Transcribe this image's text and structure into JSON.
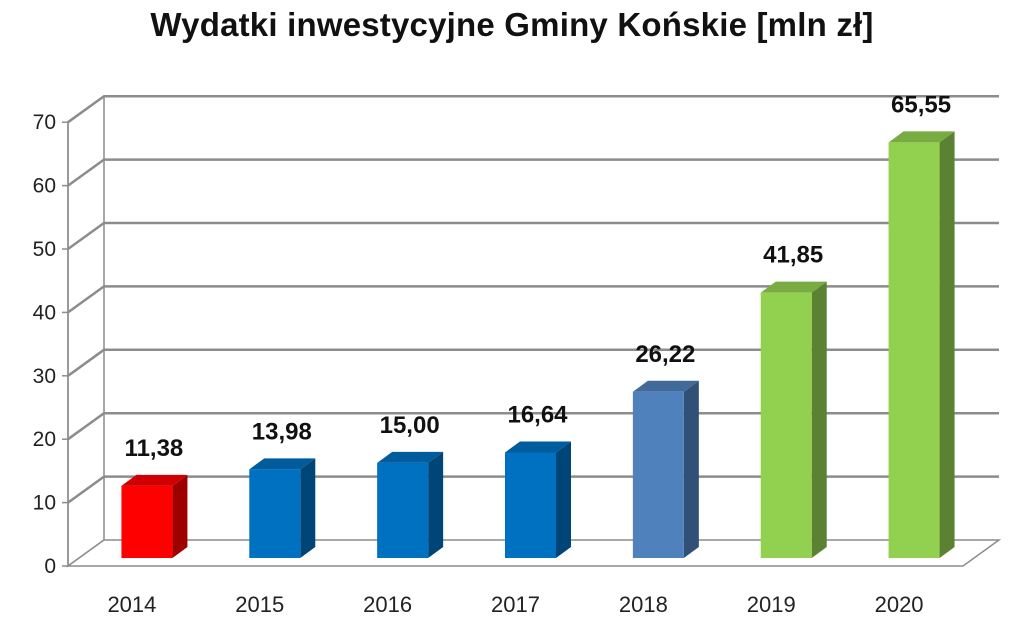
{
  "chart_data": {
    "type": "bar",
    "title": "Wydatki inwestycyjne Gminy Końskie [mln zł]",
    "xlabel": "",
    "ylabel": "",
    "categories": [
      "2014",
      "2015",
      "2016",
      "2017",
      "2018",
      "2019",
      "2020"
    ],
    "values": [
      11.38,
      13.98,
      15.0,
      16.64,
      26.22,
      41.85,
      65.55
    ],
    "data_labels": [
      "11,38",
      "13,98",
      "15,00",
      "16,64",
      "26,22",
      "41,85",
      "65,55"
    ],
    "y_ticks": [
      0,
      10,
      20,
      30,
      40,
      50,
      60,
      70
    ],
    "ylim": [
      0,
      70
    ],
    "grid": true,
    "legend": "none",
    "style": "3d-column",
    "bar_colors": [
      "#ff0000",
      "#0070c0",
      "#0070c0",
      "#0070c0",
      "#4f81bd",
      "#92d050",
      "#92d050"
    ]
  }
}
